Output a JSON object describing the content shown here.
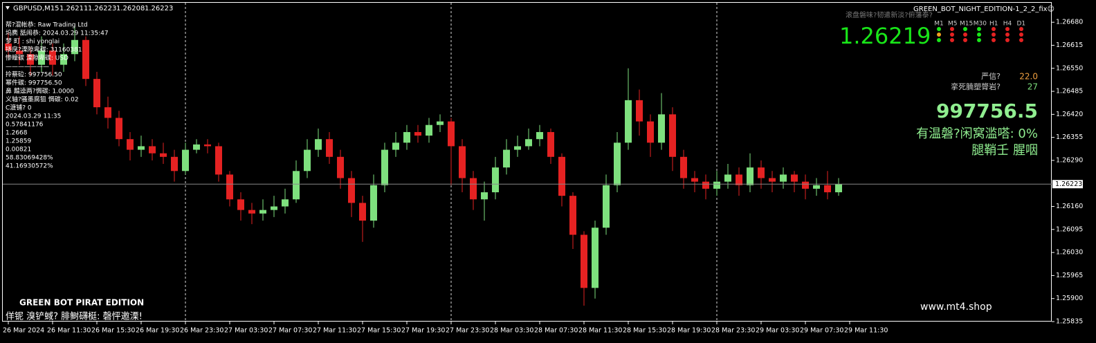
{
  "header": {
    "symbol": "GBPUSD,M15",
    "open": 1.26211,
    "high": 1.26223,
    "low": 1.26208,
    "close": 1.26223
  },
  "account_panel": {
    "lines": [
      "帮?混帐恭: Raw Trading Ltd",
      "坞麂    舐闹恭: 2024.03.29 11:35:47",
      "梦    町    : shi yonglai",
      "挠戾?溧隙卑碳: 31160381",
      "惨瞳碳 溧隙卑碳: USD",
      "———————",
      "拎蔡砬: 997756.50",
      "幂件碳: 997756.50",
      "鼻    齄逵两?惆碳: 1.0000",
      "义轴?骚墨腐狙 惆碳: 0.02",
      "C溏铺? 0",
      "2024.03.29 11:35",
      "0.57841176",
      "1.2668",
      "1.25859",
      "0.00821",
      "58.83069428%",
      "41.16930572%"
    ]
  },
  "signal_panel": {
    "title": "GREEN_BOT_NIGHT_EDITION-1_2_2_fix☺",
    "subtitle": "滚盘磐味?韧遣新淡?俯藩泰?",
    "price": "1.26219",
    "timeframes": [
      "M1",
      "M5",
      "M15",
      "M30",
      "H1",
      "H4",
      "D1"
    ],
    "rows": [
      {
        "label": "严信?",
        "value": "22.0"
      },
      {
        "label": "挛死腩塑膂岩?",
        "value": "27"
      }
    ],
    "balance": "997756.5",
    "line1": "有温磐?闲窝滥嗒:  0%",
    "line2": "腿鞘壬  腥咽"
  },
  "footer": {
    "title": "GREEN BOT PIRAT EDITION",
    "subtitle": "佯铌 溴铲蜮? 腓鲥礴梃: 磬怦邀溧!",
    "site": "www.mt4.shop"
  },
  "chart_data": {
    "type": "candlestick",
    "up_color": "#7ee07e",
    "down_color": "#e52222",
    "current_price": 1.26223,
    "ylim": [
      1.25835,
      1.26735
    ],
    "xlim": [
      -0.5,
      94.25
    ],
    "yticks": [
      {
        "value": 1.2668,
        "label": "1.26680"
      },
      1.26615,
      {
        "value": 1.2655,
        "label": "1.26550"
      },
      1.26485,
      {
        "value": 1.2642,
        "label": "1.26420"
      },
      1.26355,
      {
        "value": 1.2629,
        "label": "1.26290"
      },
      {
        "value": 1.2616,
        "label": "1.26160"
      },
      1.26095,
      {
        "value": 1.2603,
        "label": "1.26030"
      },
      1.25965,
      {
        "value": 1.259,
        "label": "1.25900"
      },
      1.25835
    ],
    "xticks": [
      {
        "value": 0,
        "label": "26 Mar 2024"
      },
      {
        "value": 4,
        "label": "26 Mar 11:30"
      },
      {
        "value": 8,
        "label": "26 Mar 15:30"
      },
      {
        "value": 12,
        "label": "26 Mar 19:30"
      },
      {
        "value": 16,
        "label": "26 Mar 23:30"
      },
      {
        "value": 20,
        "label": "27 Mar 03:30"
      },
      {
        "value": 24,
        "label": "27 Mar 07:30"
      },
      {
        "value": 28,
        "label": "27 Mar 11:30"
      },
      {
        "value": 32,
        "label": "27 Mar 15:30"
      },
      {
        "value": 36,
        "label": "27 Mar 19:30"
      },
      {
        "value": 40,
        "label": "27 Mar 23:30"
      },
      {
        "value": 44,
        "label": "28 Mar 03:30"
      },
      {
        "value": 48,
        "label": "28 Mar 07:30"
      },
      {
        "value": 52,
        "label": "28 Mar 11:30"
      },
      {
        "value": 56,
        "label": "28 Mar 15:30"
      },
      {
        "value": 60,
        "label": "28 Mar 19:30"
      },
      {
        "value": 64,
        "label": "28 Mar 23:30"
      },
      {
        "value": 68,
        "label": "29 Mar 03:30"
      },
      {
        "value": 72,
        "label": "29 Mar 07:30"
      },
      {
        "value": 76,
        "label": "29 Mar 11:30"
      }
    ],
    "open": [
      1.2662,
      1.266,
      1.2659,
      1.2656,
      1.266,
      1.2656,
      1.2659,
      1.2663,
      1.2652,
      1.2644,
      1.2641,
      1.2635,
      1.2632,
      1.2633,
      1.2631,
      1.263,
      1.2626,
      1.2632,
      1.26335,
      1.2633,
      1.2625,
      1.2618,
      1.2615,
      1.2614,
      1.2615,
      1.2616,
      1.2618,
      1.2626,
      1.2632,
      1.2635,
      1.263,
      1.2624,
      1.2617,
      1.2612,
      1.2622,
      1.2632,
      1.2634,
      1.2637,
      1.2636,
      1.2639,
      1.264,
      1.2633,
      1.2624,
      1.2618,
      1.262,
      1.2627,
      1.2632,
      1.2633,
      1.2635,
      1.2637,
      1.263,
      1.2619,
      1.2608,
      1.2593,
      1.261,
      1.2622,
      1.2634,
      1.2646,
      1.264,
      1.2634,
      1.2642,
      1.263,
      1.2624,
      1.2623,
      1.2621,
      1.2623,
      1.2625,
      1.2622,
      1.2627,
      1.2624,
      1.2623,
      1.2625,
      1.2623,
      1.2621,
      1.2622,
      1.262
    ],
    "high": [
      1.2665,
      1.2664,
      1.2661,
      1.2664,
      1.2662,
      1.2662,
      1.2667,
      1.2664,
      1.2654,
      1.2647,
      1.2643,
      1.2637,
      1.2636,
      1.2635,
      1.2634,
      1.2632,
      1.2634,
      1.2635,
      1.2635,
      1.2634,
      1.2626,
      1.262,
      1.2617,
      1.2618,
      1.2619,
      1.2621,
      1.2629,
      1.2635,
      1.2638,
      1.2637,
      1.2632,
      1.2626,
      1.2619,
      1.2625,
      1.2634,
      1.2637,
      1.2639,
      1.2639,
      1.2641,
      1.2642,
      1.2641,
      1.2635,
      1.2626,
      1.2623,
      1.263,
      1.2635,
      1.2636,
      1.2638,
      1.2639,
      1.2638,
      1.2631,
      1.262,
      1.2609,
      1.2612,
      1.2625,
      1.2637,
      1.2655,
      1.2649,
      1.2642,
      1.2648,
      1.2644,
      1.2632,
      1.2626,
      1.2625,
      1.2626,
      1.2628,
      1.2627,
      1.2631,
      1.2629,
      1.2626,
      1.2627,
      1.2626,
      1.2625,
      1.2624,
      1.2626,
      1.2624
    ],
    "low": [
      1.2658,
      1.2656,
      1.2653,
      1.2654,
      1.2653,
      1.2654,
      1.2657,
      1.265,
      1.2642,
      1.2638,
      1.2633,
      1.2629,
      1.263,
      1.2629,
      1.2628,
      1.2623,
      1.2625,
      1.2631,
      1.2631,
      1.2623,
      1.2616,
      1.2612,
      1.2611,
      1.2612,
      1.2613,
      1.2614,
      1.2617,
      1.2624,
      1.263,
      1.2628,
      1.2621,
      1.2613,
      1.2606,
      1.261,
      1.262,
      1.263,
      1.2632,
      1.2634,
      1.2634,
      1.2637,
      1.2622,
      1.262,
      1.2615,
      1.2612,
      1.2618,
      1.2625,
      1.263,
      1.2632,
      1.2633,
      1.2628,
      1.2616,
      1.2604,
      1.2588,
      1.259,
      1.2608,
      1.262,
      1.2632,
      1.2636,
      1.263,
      1.2632,
      1.2626,
      1.2621,
      1.262,
      1.2618,
      1.2619,
      1.2621,
      1.2619,
      1.262,
      1.2621,
      1.262,
      1.2621,
      1.262,
      1.2618,
      1.2619,
      1.2618,
      1.2619
    ],
    "close": [
      1.266,
      1.2659,
      1.2656,
      1.266,
      1.2656,
      1.2659,
      1.2663,
      1.2652,
      1.2644,
      1.2641,
      1.2635,
      1.2632,
      1.2633,
      1.2631,
      1.263,
      1.2626,
      1.2632,
      1.26335,
      1.2633,
      1.2625,
      1.2618,
      1.2615,
      1.2614,
      1.2615,
      1.2616,
      1.2618,
      1.2626,
      1.2632,
      1.2635,
      1.263,
      1.2624,
      1.2617,
      1.2612,
      1.2622,
      1.2632,
      1.2634,
      1.2637,
      1.2636,
      1.2639,
      1.264,
      1.2633,
      1.2624,
      1.2618,
      1.262,
      1.2627,
      1.2632,
      1.2633,
      1.2635,
      1.2637,
      1.263,
      1.2619,
      1.2608,
      1.2593,
      1.261,
      1.2622,
      1.2634,
      1.2646,
      1.264,
      1.2634,
      1.2642,
      1.263,
      1.2624,
      1.2623,
      1.2621,
      1.2623,
      1.2625,
      1.2622,
      1.2627,
      1.2624,
      1.2623,
      1.2625,
      1.2623,
      1.2621,
      1.2622,
      1.262,
      1.26223
    ]
  }
}
